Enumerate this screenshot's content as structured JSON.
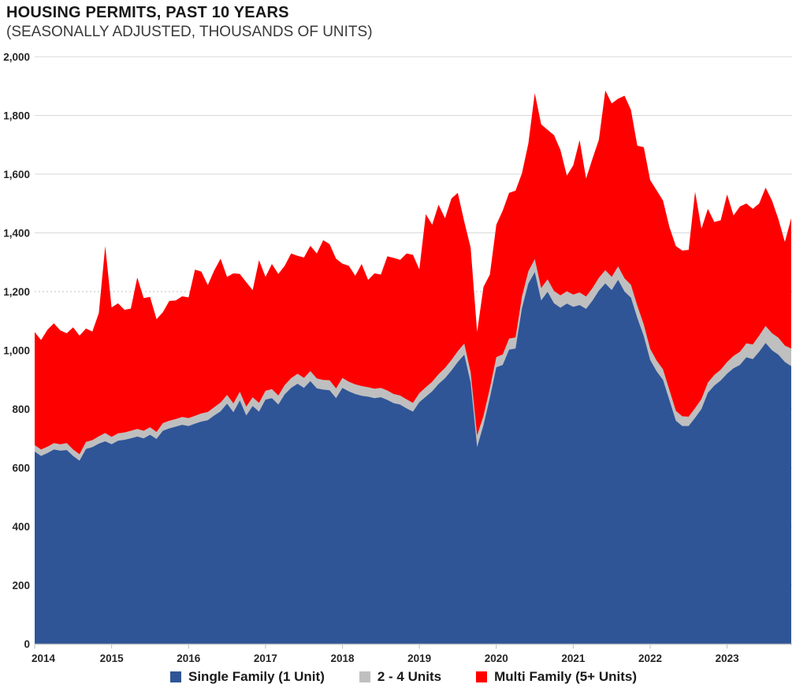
{
  "header": {
    "title": "HOUSING PERMITS, PAST 10 YEARS",
    "subtitle": "(SEASONALLY ADJUSTED, THOUSANDS OF UNITS)"
  },
  "colors": {
    "background": "#FFFFFF",
    "grid": "#D9D9D9",
    "grid_dotted": "#BFBFBF",
    "axis_line": "#C6C6C6",
    "tick_mark": "#BFBFBF",
    "tick_text": "#262626",
    "single_family": "#2F5597",
    "two_four_units": "#BFBFBF",
    "multi_family": "#FF0000"
  },
  "chart_data": {
    "type": "area",
    "stacked": true,
    "title": "HOUSING PERMITS, PAST 10 YEARS",
    "subtitle": "(SEASONALLY ADJUSTED, THOUSANDS OF UNITS)",
    "units": "thousands of units, SAAR",
    "frequency": "monthly",
    "grid": "horizontal",
    "legend_position": "bottom",
    "x_axis": {
      "tick_labels": [
        "2014",
        "2015",
        "2016",
        "2017",
        "2018",
        "2019",
        "2020",
        "2021",
        "2022",
        "2023"
      ],
      "tick_indices": [
        0,
        12,
        24,
        36,
        48,
        60,
        72,
        84,
        96,
        108
      ]
    },
    "y_axis": {
      "min": 0,
      "max": 2000,
      "tick_step": 200,
      "tick_labels": [
        "0",
        "200",
        "400",
        "600",
        "800",
        "1,000",
        "1,200",
        "1,400",
        "1,600",
        "1,800",
        "2,000"
      ],
      "dotted_gridline_value": 1200
    },
    "series": [
      {
        "name": "Single Family (1 Unit)",
        "color": "#2F5597",
        "values": [
          655,
          640,
          650,
          662,
          658,
          660,
          640,
          624,
          664,
          670,
          682,
          690,
          680,
          692,
          695,
          700,
          706,
          700,
          712,
          698,
          726,
          734,
          740,
          746,
          742,
          750,
          757,
          762,
          778,
          792,
          818,
          789,
          829,
          778,
          810,
          791,
          832,
          837,
          815,
          850,
          872,
          886,
          872,
          895,
          870,
          866,
          864,
          837,
          872,
          860,
          851,
          845,
          842,
          837,
          840,
          831,
          820,
          815,
          802,
          791,
          823,
          842,
          860,
          885,
          905,
          931,
          960,
          985,
          890,
          670,
          745,
          838,
          942,
          950,
          1002,
          1006,
          1143,
          1227,
          1266,
          1170,
          1199,
          1160,
          1145,
          1159,
          1148,
          1154,
          1141,
          1169,
          1203,
          1228,
          1205,
          1240,
          1200,
          1179,
          1110,
          1048,
          967,
          928,
          899,
          830,
          760,
          742,
          742,
          770,
          800,
          855,
          880,
          897,
          920,
          939,
          950,
          976,
          970,
          995,
          1025,
          1000,
          985,
          960,
          946
        ]
      },
      {
        "name": "2 - 4 Units",
        "color": "#BFBFBF",
        "values": [
          22,
          22,
          22,
          22,
          22,
          24,
          22,
          22,
          24,
          24,
          25,
          28,
          25,
          25,
          25,
          26,
          26,
          26,
          26,
          24,
          26,
          26,
          26,
          27,
          27,
          27,
          28,
          28,
          28,
          30,
          30,
          30,
          30,
          30,
          30,
          30,
          30,
          31,
          31,
          32,
          33,
          34,
          34,
          34,
          34,
          33,
          34,
          33,
          34,
          33,
          33,
          33,
          32,
          32,
          32,
          32,
          31,
          31,
          31,
          30,
          31,
          32,
          33,
          34,
          35,
          36,
          37,
          38,
          36,
          40,
          32,
          33,
          35,
          36,
          38,
          38,
          40,
          42,
          45,
          42,
          43,
          42,
          42,
          42,
          42,
          43,
          42,
          43,
          44,
          45,
          45,
          46,
          45,
          44,
          42,
          40,
          38,
          37,
          36,
          35,
          34,
          33,
          32,
          33,
          34,
          35,
          36,
          37,
          40,
          42,
          45,
          48,
          50,
          55,
          58,
          58,
          58,
          56,
          60
        ]
      },
      {
        "name": "Multi Family (5+ Units)",
        "color": "#FF0000",
        "values": [
          385,
          373,
          398,
          408,
          388,
          374,
          416,
          404,
          386,
          370,
          420,
          637,
          441,
          443,
          418,
          416,
          516,
          452,
          444,
          384,
          378,
          408,
          404,
          411,
          411,
          498,
          483,
          432,
          466,
          490,
          402,
          443,
          401,
          424,
          365,
          486,
          388,
          426,
          414,
          406,
          425,
          402,
          410,
          427,
          426,
          476,
          464,
          442,
          389,
          395,
          370,
          416,
          366,
          393,
          386,
          457,
          464,
          462,
          497,
          504,
          422,
          590,
          535,
          577,
          510,
          550,
          539,
          415,
          424,
          352,
          439,
          387,
          451,
          490,
          496,
          500,
          420,
          435,
          565,
          558,
          509,
          531,
          496,
          394,
          440,
          519,
          402,
          441,
          470,
          612,
          591,
          571,
          622,
          596,
          545,
          604,
          575,
          580,
          575,
          555,
          561,
          565,
          568,
          737,
          580,
          592,
          521,
          509,
          571,
          478,
          495,
          476,
          462,
          450,
          471,
          452,
          404,
          353,
          444
        ]
      }
    ]
  }
}
